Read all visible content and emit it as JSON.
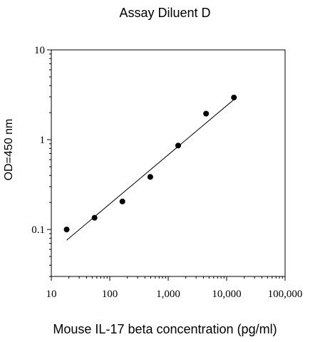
{
  "chart_data": {
    "type": "scatter",
    "title": "Assay Diluent D",
    "xlabel": "Mouse IL-17 beta concentration (pg/ml)",
    "ylabel": "OD=450 nm",
    "xscale": "log",
    "yscale": "log",
    "xlim": [
      10,
      100000
    ],
    "ylim": [
      0.03,
      10
    ],
    "x_ticks": [
      10,
      100,
      1000,
      10000,
      100000
    ],
    "x_tick_labels": [
      "10",
      "100",
      "1,000",
      "10,000",
      "100,000"
    ],
    "y_ticks": [
      0.1,
      1,
      10
    ],
    "y_tick_labels": [
      "0.1",
      "1",
      "10"
    ],
    "grid": false,
    "series": [
      {
        "x": [
          18.3,
          54.9,
          164.6,
          493.8,
          1481,
          4444,
          13333
        ],
        "y": [
          0.1,
          0.135,
          0.205,
          0.385,
          0.86,
          1.95,
          2.95
        ]
      }
    ],
    "fit_line": {
      "x": [
        18.3,
        13333
      ],
      "y": [
        0.076,
        2.8
      ]
    }
  }
}
